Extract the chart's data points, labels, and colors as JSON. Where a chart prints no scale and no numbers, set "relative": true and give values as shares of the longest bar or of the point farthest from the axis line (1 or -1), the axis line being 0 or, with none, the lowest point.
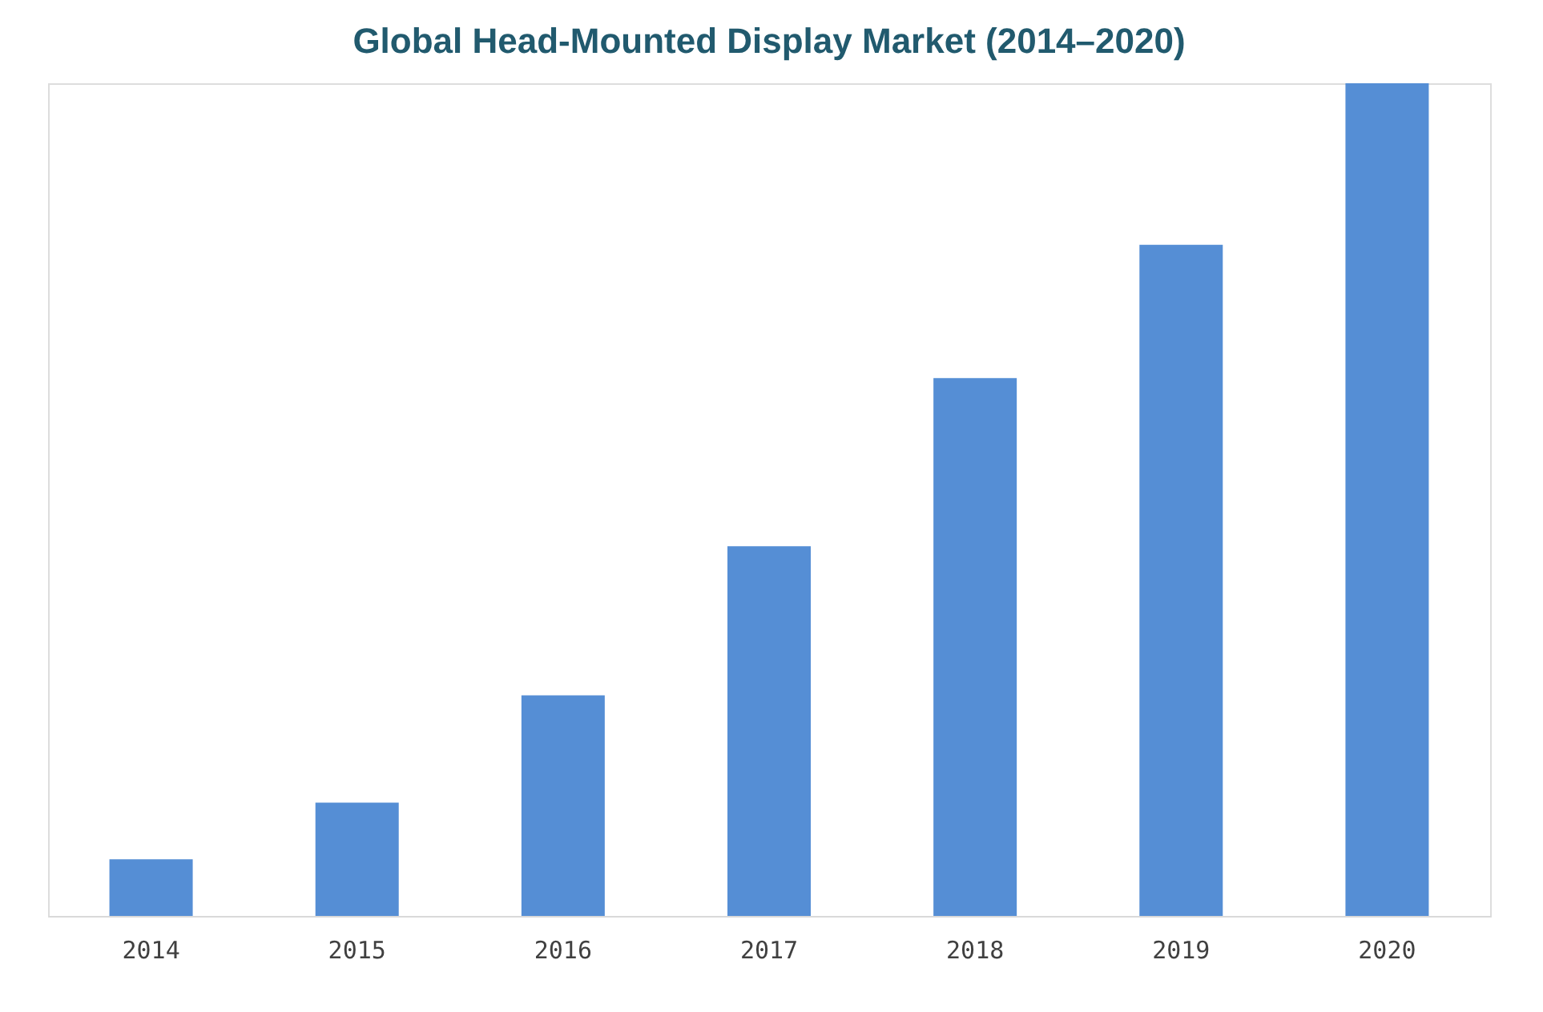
{
  "chart_data": {
    "type": "bar",
    "title": "Global Head-Mounted Display Market (2014–2020)",
    "categories": [
      "2014",
      "2015",
      "2016",
      "2017",
      "2018",
      "2019",
      "2020"
    ],
    "values": [
      0.068,
      0.136,
      0.265,
      0.444,
      0.646,
      0.806,
      1
    ],
    "color": "#558ed5",
    "relative": true,
    "grid": false
  }
}
